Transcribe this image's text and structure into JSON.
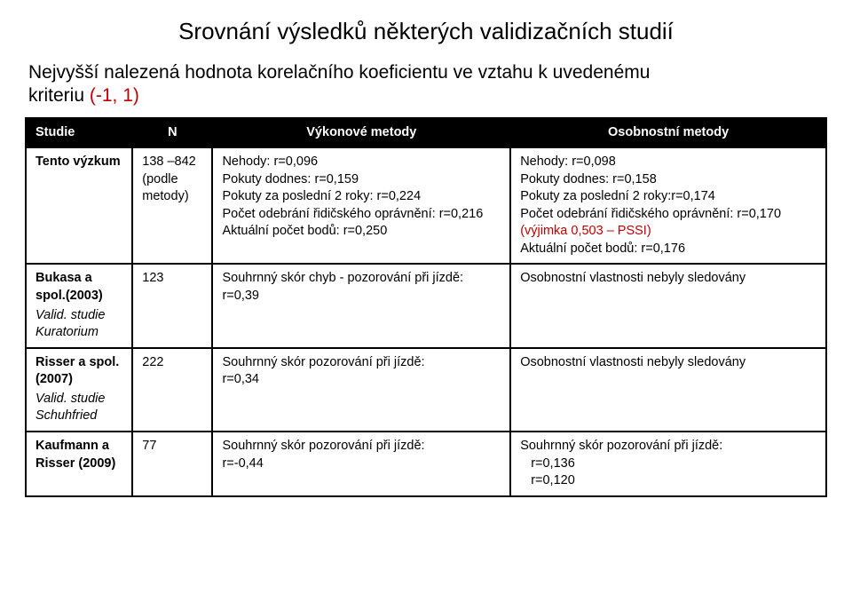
{
  "title": "Srovnání výsledků některých validizačních studií",
  "subtitle_line1": "Nejvyšší nalezená hodnota korelačního koeficientu ve vztahu k uvedenému",
  "subtitle_line2_black": "kriteriu ",
  "subtitle_line2_red": "(-1, 1)",
  "headers": {
    "study": "Studie",
    "n": "N",
    "perf": "Výkonové metody",
    "pers": "Osobnostní metody"
  },
  "rows": [
    {
      "study_bold": "Tento výzkum",
      "study_italic": "",
      "n": "138 –842 (podle metody)",
      "perf": [
        "Nehody: r=0,096",
        "Pokuty dodnes: r=0,159",
        "Pokuty za poslední 2 roky: r=0,224",
        "Počet odebrání řidičského oprávnění: r=0,216",
        "Aktuální počet bodů: r=0,250"
      ],
      "pers": [
        "Nehody: r=0,098",
        "Pokuty dodnes: r=0,158",
        "Pokuty za poslední 2 roky:r=0,174",
        {
          "text": "Počet odebrání řidičského oprávnění: r=0,170 ",
          "red": "(výjimka 0,503 – PSSI)"
        },
        "Aktuální počet bodů: r=0,176"
      ]
    },
    {
      "study_bold": "Bukasa a spol.(2003)",
      "study_italic": "Valid. studie Kuratorium",
      "n": "123",
      "perf": [
        "Souhrnný skór chyb - pozorování při jízdě: r=0,39"
      ],
      "pers": [
        "Osobnostní vlastnosti nebyly sledovány"
      ]
    },
    {
      "study_bold": "Risser a spol.(2007)",
      "study_italic": "Valid. studie Schuhfried",
      "n": "222",
      "perf": [
        "Souhrnný skór pozorování při jízdě:",
        "r=0,34"
      ],
      "pers": [
        "Osobnostní vlastnosti nebyly sledovány"
      ]
    },
    {
      "study_bold": "Kaufmann a Risser (2009)",
      "study_italic": "",
      "n": "77",
      "perf": [
        "Souhrnný skór pozorování při jízdě:",
        "r=-0,44"
      ],
      "pers": [
        "Souhrnný skór pozorování při jízdě:",
        {
          "indent": "r=0,136"
        },
        {
          "indent": "r=0,120"
        }
      ]
    }
  ]
}
